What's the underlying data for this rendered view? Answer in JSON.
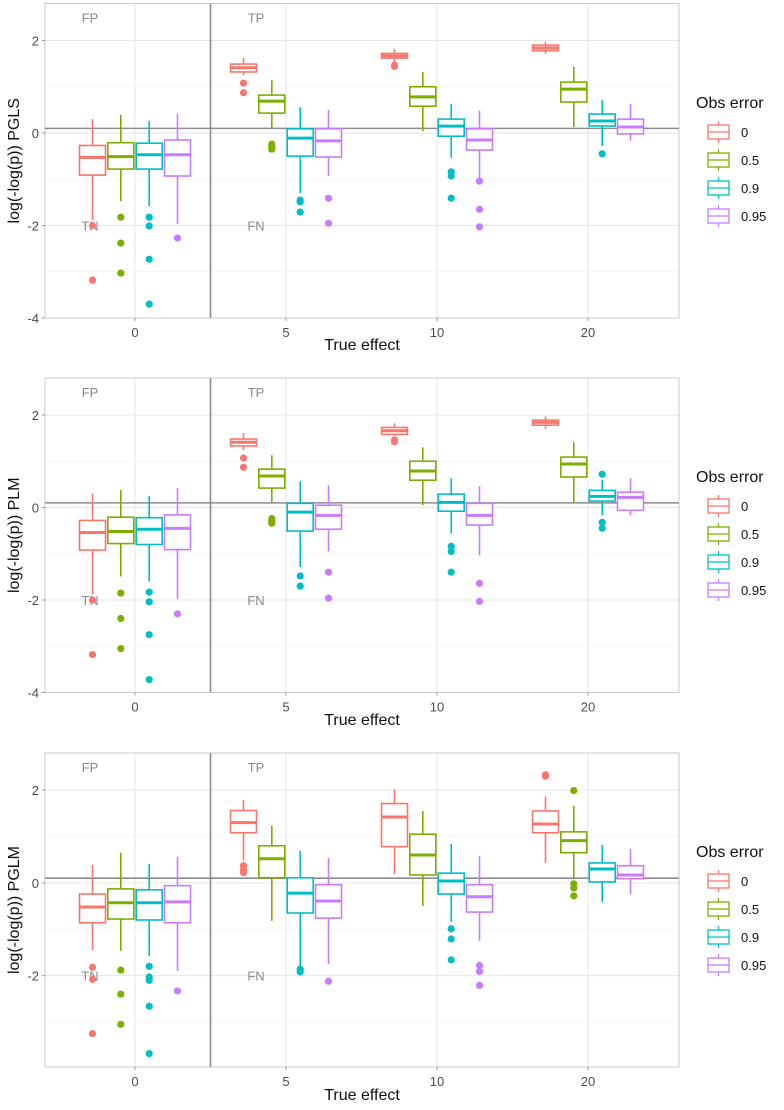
{
  "figure": {
    "description": "Three stacked boxplot panels comparing log(-log(p)) across true effect sizes and observation error levels"
  },
  "colors": {
    "0": "#F8766D",
    "0.5": "#7CAE00",
    "0.9": "#00BFC4",
    "0.95": "#C77CFF",
    "panel_border": "#c8c8c8",
    "grid_major": "#e6e6e6",
    "grid_minor": "#f2f2f2",
    "reference_line": "#8c8c8c",
    "quadrant_label": "#888888",
    "tick_label": "#4d4d4d",
    "axis_title": "#111111"
  },
  "chart_data": [
    {
      "type": "boxplot",
      "ylabel": "log(-log(p)) PGLS",
      "xlabel": "True effect",
      "categories": [
        "0",
        "5",
        "10",
        "20"
      ],
      "yticks": [
        2,
        0,
        -2,
        -4
      ],
      "ylim": [
        -4.0,
        2.8
      ],
      "grid": true,
      "threshold_y": 0.1,
      "divider_between": [
        "0",
        "5"
      ],
      "quadrant_labels": [
        {
          "text": "FP",
          "category_side": "left",
          "y": 2.5
        },
        {
          "text": "TP",
          "category_side": "right",
          "y": 2.5
        },
        {
          "text": "TN",
          "category_side": "left",
          "y": -2.0
        },
        {
          "text": "FN",
          "category_side": "right",
          "y": -2.0
        }
      ],
      "legend": {
        "title": "Obs error",
        "placement": "right",
        "entries": [
          "0",
          "0.5",
          "0.9",
          "0.95"
        ]
      },
      "series": [
        {
          "name": "0",
          "boxes": [
            {
              "category": "0",
              "whisker_low": -1.88,
              "q1": -0.91,
              "median": -0.53,
              "q3": -0.27,
              "whisker_high": 0.3,
              "outliers": [
                -2.0,
                -3.18
              ]
            },
            {
              "category": "5",
              "whisker_low": 1.25,
              "q1": 1.32,
              "median": 1.41,
              "q3": 1.49,
              "whisker_high": 1.62,
              "outliers": [
                1.08,
                0.87
              ]
            },
            {
              "category": "10",
              "whisker_low": 1.55,
              "q1": 1.62,
              "median": 1.67,
              "q3": 1.72,
              "whisker_high": 1.82,
              "outliers": [
                1.44,
                1.47
              ]
            },
            {
              "category": "20",
              "whisker_low": 1.71,
              "q1": 1.78,
              "median": 1.84,
              "q3": 1.9,
              "whisker_high": 1.97,
              "outliers": []
            }
          ]
        },
        {
          "name": "0.5",
          "boxes": [
            {
              "category": "0",
              "whisker_low": -1.47,
              "q1": -0.78,
              "median": -0.51,
              "q3": -0.21,
              "whisker_high": 0.39,
              "outliers": [
                -1.82,
                -2.38,
                -3.03
              ]
            },
            {
              "category": "5",
              "whisker_low": 0.11,
              "q1": 0.43,
              "median": 0.69,
              "q3": 0.82,
              "whisker_high": 1.15,
              "outliers": [
                -0.24,
                -0.3,
                -0.35
              ]
            },
            {
              "category": "10",
              "whisker_low": 0.04,
              "q1": 0.58,
              "median": 0.78,
              "q3": 1.0,
              "whisker_high": 1.32,
              "outliers": []
            },
            {
              "category": "20",
              "whisker_low": 0.13,
              "q1": 0.67,
              "median": 0.95,
              "q3": 1.1,
              "whisker_high": 1.43,
              "outliers": []
            }
          ]
        },
        {
          "name": "0.9",
          "boxes": [
            {
              "category": "0",
              "whisker_low": -1.58,
              "q1": -0.78,
              "median": -0.47,
              "q3": -0.22,
              "whisker_high": 0.26,
              "outliers": [
                -1.82,
                -2.01,
                -2.73,
                -3.7
              ]
            },
            {
              "category": "5",
              "whisker_low": -1.3,
              "q1": -0.5,
              "median": -0.11,
              "q3": 0.09,
              "whisker_high": 0.56,
              "outliers": [
                -1.45,
                -1.49,
                -1.71
              ]
            },
            {
              "category": "10",
              "whisker_low": -0.54,
              "q1": -0.07,
              "median": 0.15,
              "q3": 0.3,
              "whisker_high": 0.63,
              "outliers": [
                -0.84,
                -0.93,
                -1.41
              ]
            },
            {
              "category": "20",
              "whisker_low": -0.28,
              "q1": 0.15,
              "median": 0.26,
              "q3": 0.41,
              "whisker_high": 0.71,
              "outliers": [
                -0.45
              ]
            }
          ]
        },
        {
          "name": "0.95",
          "boxes": [
            {
              "category": "0",
              "whisker_low": -1.97,
              "q1": -0.93,
              "median": -0.47,
              "q3": -0.15,
              "whisker_high": 0.41,
              "outliers": [
                -2.27
              ]
            },
            {
              "category": "5",
              "whisker_low": -0.93,
              "q1": -0.52,
              "median": -0.17,
              "q3": 0.09,
              "whisker_high": 0.5,
              "outliers": [
                -1.41,
                -1.95
              ]
            },
            {
              "category": "10",
              "whisker_low": -1.02,
              "q1": -0.37,
              "median": -0.15,
              "q3": 0.09,
              "whisker_high": 0.48,
              "outliers": [
                -1.04,
                -1.65,
                -2.03
              ]
            },
            {
              "category": "20",
              "whisker_low": -0.17,
              "q1": -0.02,
              "median": 0.13,
              "q3": 0.3,
              "whisker_high": 0.63,
              "outliers": []
            }
          ]
        }
      ]
    },
    {
      "type": "boxplot",
      "ylabel": "log(-log(p)) PLM",
      "xlabel": "True effect",
      "categories": [
        "0",
        "5",
        "10",
        "20"
      ],
      "yticks": [
        2,
        0,
        -2,
        -4
      ],
      "ylim": [
        -4.0,
        2.8
      ],
      "grid": true,
      "threshold_y": 0.1,
      "divider_between": [
        "0",
        "5"
      ],
      "quadrant_labels": [
        {
          "text": "FP",
          "category_side": "left",
          "y": 2.5
        },
        {
          "text": "TP",
          "category_side": "right",
          "y": 2.5
        },
        {
          "text": "TN",
          "category_side": "left",
          "y": -2.0
        },
        {
          "text": "FN",
          "category_side": "right",
          "y": -2.0
        }
      ],
      "legend": {
        "title": "Obs error",
        "placement": "right",
        "entries": [
          "0",
          "0.5",
          "0.9",
          "0.95"
        ]
      },
      "series": [
        {
          "name": "0",
          "boxes": [
            {
              "category": "0",
              "whisker_low": -1.88,
              "q1": -0.92,
              "median": -0.54,
              "q3": -0.28,
              "whisker_high": 0.3,
              "outliers": [
                -2.0,
                -3.18
              ]
            },
            {
              "category": "5",
              "whisker_low": 1.24,
              "q1": 1.33,
              "median": 1.41,
              "q3": 1.48,
              "whisker_high": 1.61,
              "outliers": [
                1.07,
                0.87
              ]
            },
            {
              "category": "10",
              "whisker_low": 1.55,
              "q1": 1.58,
              "median": 1.66,
              "q3": 1.73,
              "whisker_high": 1.82,
              "outliers": [
                1.46,
                1.42
              ]
            },
            {
              "category": "20",
              "whisker_low": 1.7,
              "q1": 1.78,
              "median": 1.84,
              "q3": 1.89,
              "whisker_high": 1.97,
              "outliers": []
            }
          ]
        },
        {
          "name": "0.5",
          "boxes": [
            {
              "category": "0",
              "whisker_low": -1.49,
              "q1": -0.78,
              "median": -0.52,
              "q3": -0.21,
              "whisker_high": 0.38,
              "outliers": [
                -1.85,
                -2.4,
                -3.05
              ]
            },
            {
              "category": "5",
              "whisker_low": 0.11,
              "q1": 0.42,
              "median": 0.68,
              "q3": 0.83,
              "whisker_high": 1.13,
              "outliers": [
                -0.24,
                -0.29,
                -0.34
              ]
            },
            {
              "category": "10",
              "whisker_low": 0.05,
              "q1": 0.59,
              "median": 0.79,
              "q3": 1.0,
              "whisker_high": 1.3,
              "outliers": []
            },
            {
              "category": "20",
              "whisker_low": 0.09,
              "q1": 0.66,
              "median": 0.94,
              "q3": 1.09,
              "whisker_high": 1.41,
              "outliers": []
            }
          ]
        },
        {
          "name": "0.9",
          "boxes": [
            {
              "category": "0",
              "whisker_low": -1.6,
              "q1": -0.8,
              "median": -0.47,
              "q3": -0.22,
              "whisker_high": 0.25,
              "outliers": [
                -1.83,
                -2.04,
                -2.75,
                -3.72
              ]
            },
            {
              "category": "5",
              "whisker_low": -1.29,
              "q1": -0.51,
              "median": -0.1,
              "q3": 0.09,
              "whisker_high": 0.57,
              "outliers": [
                -1.48,
                -1.7
              ]
            },
            {
              "category": "10",
              "whisker_low": -0.56,
              "q1": -0.08,
              "median": 0.11,
              "q3": 0.29,
              "whisker_high": 0.63,
              "outliers": [
                -0.84,
                -0.95,
                -1.4
              ]
            },
            {
              "category": "20",
              "whisker_low": -0.17,
              "q1": 0.14,
              "median": 0.24,
              "q3": 0.37,
              "whisker_high": 0.6,
              "outliers": [
                0.72,
                -0.32,
                -0.45
              ]
            }
          ]
        },
        {
          "name": "0.95",
          "boxes": [
            {
              "category": "0",
              "whisker_low": -1.98,
              "q1": -0.91,
              "median": -0.45,
              "q3": -0.16,
              "whisker_high": 0.42,
              "outliers": [
                -2.3
              ]
            },
            {
              "category": "5",
              "whisker_low": -0.95,
              "q1": -0.47,
              "median": -0.17,
              "q3": 0.05,
              "whisker_high": 0.48,
              "outliers": [
                -1.4,
                -1.96
              ]
            },
            {
              "category": "10",
              "whisker_low": -1.03,
              "q1": -0.38,
              "median": -0.17,
              "q3": 0.09,
              "whisker_high": 0.46,
              "outliers": [
                -1.64,
                -2.03
              ]
            },
            {
              "category": "20",
              "whisker_low": -0.17,
              "q1": -0.06,
              "median": 0.22,
              "q3": 0.33,
              "whisker_high": 0.63,
              "outliers": []
            }
          ]
        }
      ]
    },
    {
      "type": "boxplot",
      "ylabel": "log(-log(p)) PGLM",
      "xlabel": "True effect",
      "categories": [
        "0",
        "5",
        "10",
        "20"
      ],
      "yticks": [
        2,
        0,
        -2
      ],
      "ylim": [
        -3.97,
        2.8
      ],
      "grid": true,
      "threshold_y": 0.1,
      "divider_between": [
        "0",
        "5"
      ],
      "quadrant_labels": [
        {
          "text": "FP",
          "category_side": "left",
          "y": 2.5
        },
        {
          "text": "TP",
          "category_side": "right",
          "y": 2.5
        },
        {
          "text": "TN",
          "category_side": "left",
          "y": -2.0
        },
        {
          "text": "FN",
          "category_side": "right",
          "y": -2.0
        }
      ],
      "legend": {
        "title": "Obs error",
        "placement": "right",
        "entries": [
          "0",
          "0.5",
          "0.9",
          "0.95"
        ]
      },
      "series": [
        {
          "name": "0",
          "boxes": [
            {
              "category": "0",
              "whisker_low": -1.45,
              "q1": -0.86,
              "median": -0.52,
              "q3": -0.24,
              "whisker_high": 0.39,
              "outliers": [
                -1.82,
                -2.08,
                -3.25
              ]
            },
            {
              "category": "5",
              "whisker_low": 0.48,
              "q1": 1.08,
              "median": 1.3,
              "q3": 1.56,
              "whisker_high": 1.79,
              "outliers": [
                0.37,
                0.28,
                0.22
              ]
            },
            {
              "category": "10",
              "whisker_low": 0.19,
              "q1": 0.78,
              "median": 1.42,
              "q3": 1.71,
              "whisker_high": 2.02,
              "outliers": []
            },
            {
              "category": "20",
              "whisker_low": 0.43,
              "q1": 1.08,
              "median": 1.27,
              "q3": 1.55,
              "whisker_high": 1.86,
              "outliers": [
                2.33,
                2.3
              ]
            }
          ]
        },
        {
          "name": "0.5",
          "boxes": [
            {
              "category": "0",
              "whisker_low": -1.47,
              "q1": -0.78,
              "median": -0.43,
              "q3": -0.13,
              "whisker_high": 0.65,
              "outliers": [
                -1.88,
                -2.4,
                -3.05
              ]
            },
            {
              "category": "5",
              "whisker_low": -0.82,
              "q1": 0.11,
              "median": 0.52,
              "q3": 0.8,
              "whisker_high": 1.23,
              "outliers": []
            },
            {
              "category": "10",
              "whisker_low": -0.5,
              "q1": 0.17,
              "median": 0.6,
              "q3": 1.05,
              "whisker_high": 1.55,
              "outliers": []
            },
            {
              "category": "20",
              "whisker_low": 0.11,
              "q1": 0.65,
              "median": 0.91,
              "q3": 1.1,
              "whisker_high": 1.66,
              "outliers": [
                1.99,
                -0.02,
                -0.11,
                -0.28
              ]
            }
          ]
        },
        {
          "name": "0.9",
          "boxes": [
            {
              "category": "0",
              "whisker_low": -1.58,
              "q1": -0.8,
              "median": -0.43,
              "q3": -0.15,
              "whisker_high": 0.41,
              "outliers": [
                -1.8,
                -2.03,
                -2.1,
                -2.66,
                -3.68
              ]
            },
            {
              "category": "5",
              "whisker_low": -1.84,
              "q1": -0.65,
              "median": -0.22,
              "q3": 0.11,
              "whisker_high": 0.69,
              "outliers": [
                -1.86,
                -1.92
              ]
            },
            {
              "category": "10",
              "whisker_low": -0.84,
              "q1": -0.24,
              "median": 0.04,
              "q3": 0.21,
              "whisker_high": 0.84,
              "outliers": [
                -0.99,
                -1.21,
                -1.66
              ]
            },
            {
              "category": "20",
              "whisker_low": -0.41,
              "q1": 0.02,
              "median": 0.3,
              "q3": 0.43,
              "whisker_high": 0.82,
              "outliers": []
            }
          ]
        },
        {
          "name": "0.95",
          "boxes": [
            {
              "category": "0",
              "whisker_low": -1.9,
              "q1": -0.86,
              "median": -0.41,
              "q3": -0.06,
              "whisker_high": 0.56,
              "outliers": [
                -2.33
              ]
            },
            {
              "category": "5",
              "whisker_low": -1.75,
              "q1": -0.76,
              "median": -0.39,
              "q3": -0.04,
              "whisker_high": 0.54,
              "outliers": [
                -2.12
              ]
            },
            {
              "category": "10",
              "whisker_low": -1.25,
              "q1": -0.63,
              "median": -0.3,
              "q3": -0.04,
              "whisker_high": 0.58,
              "outliers": [
                -1.78,
                -1.91,
                -2.21
              ]
            },
            {
              "category": "20",
              "whisker_low": -0.24,
              "q1": 0.09,
              "median": 0.17,
              "q3": 0.37,
              "whisker_high": 0.73,
              "outliers": []
            }
          ]
        }
      ]
    }
  ]
}
